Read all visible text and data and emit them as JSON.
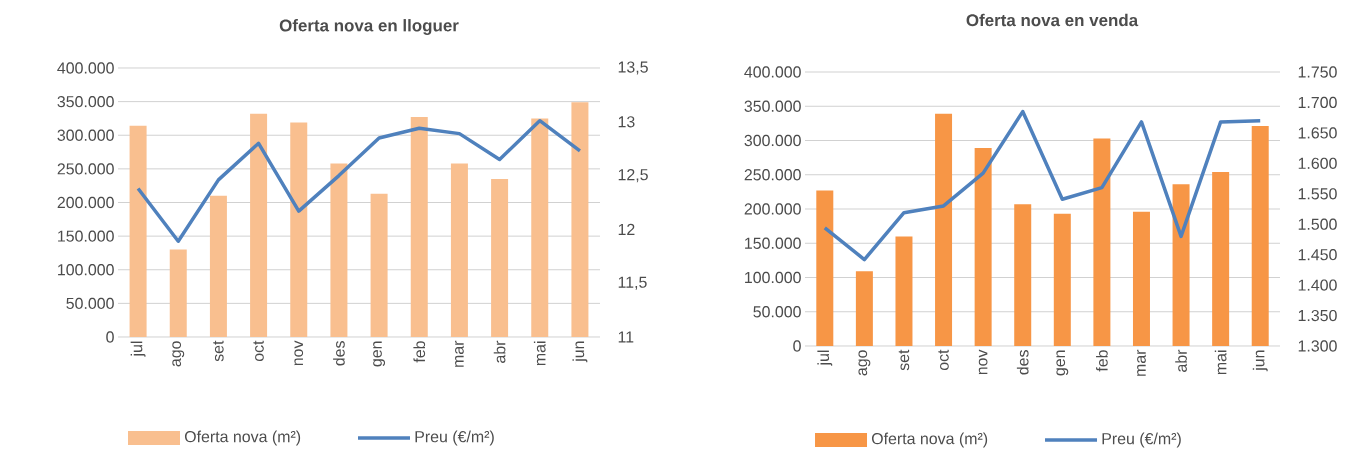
{
  "chart_data": [
    {
      "type": "bar",
      "title": "Oferta nova en lloguer",
      "categories": [
        "jul",
        "ago",
        "set",
        "oct",
        "nov",
        "des",
        "gen",
        "feb",
        "mar",
        "abr",
        "mai",
        "jun"
      ],
      "series": [
        {
          "name": "Oferta nova (m²)",
          "color": "#f9bf8f",
          "values": [
            314000,
            130000,
            210000,
            332000,
            319000,
            258000,
            213000,
            327000,
            258000,
            235000,
            325000,
            349000
          ]
        },
        {
          "name": "Preu (€/m²)",
          "type": "line",
          "axis": "y2",
          "color": "#4f81bd",
          "values": [
            12.38,
            11.89,
            12.46,
            12.8,
            12.17,
            12.5,
            12.85,
            12.94,
            12.89,
            12.65,
            13.01,
            12.73
          ]
        }
      ],
      "ylim": [
        0,
        400000
      ],
      "yticks": [
        0,
        {
          "value": 50000,
          "label": "50.000"
        },
        {
          "value": 100000,
          "label": "100.000"
        },
        {
          "value": 150000,
          "label": "150.000"
        },
        {
          "value": 200000,
          "label": "200.000"
        },
        {
          "value": 250000,
          "label": "250.000"
        },
        {
          "value": 300000,
          "label": "300.000"
        },
        {
          "value": 350000,
          "label": "350.000"
        },
        {
          "value": 400000,
          "label": "400.000"
        }
      ],
      "y2lim": [
        11,
        13.5
      ],
      "y2ticks": [
        11,
        {
          "value": 11.5,
          "label": "11,5"
        },
        12,
        {
          "value": 12.5,
          "label": "12,5"
        },
        13,
        {
          "value": 13.5,
          "label": "13,5"
        }
      ],
      "grid": "y",
      "legend": "bottom"
    },
    {
      "type": "bar",
      "title": "Oferta nova en venda",
      "categories": [
        "jul",
        "ago",
        "set",
        "oct",
        "nov",
        "des",
        "gen",
        "feb",
        "mar",
        "abr",
        "mai",
        "jun"
      ],
      "series": [
        {
          "name": "Oferta nova (m²)",
          "color": "#f79646",
          "values": [
            227000,
            109000,
            160000,
            339000,
            289000,
            207000,
            193000,
            303000,
            196000,
            236000,
            254000,
            321000
          ]
        },
        {
          "name": "Preu (€/m²)",
          "type": "line",
          "axis": "y2",
          "color": "#4f81bd",
          "values": [
            1494,
            1442,
            1519,
            1530,
            1584,
            1685,
            1541,
            1560,
            1668,
            1480,
            1668,
            1670
          ]
        }
      ],
      "ylim": [
        0,
        400000
      ],
      "yticks": [
        0,
        {
          "value": 50000,
          "label": "50.000"
        },
        {
          "value": 100000,
          "label": "100.000"
        },
        {
          "value": 150000,
          "label": "150.000"
        },
        {
          "value": 200000,
          "label": "200.000"
        },
        {
          "value": 250000,
          "label": "250.000"
        },
        {
          "value": 300000,
          "label": "300.000"
        },
        {
          "value": 350000,
          "label": "350.000"
        },
        {
          "value": 400000,
          "label": "400.000"
        }
      ],
      "y2lim": [
        1300,
        1750
      ],
      "y2ticks": [
        {
          "value": 1300,
          "label": "1.300"
        },
        {
          "value": 1350,
          "label": "1.350"
        },
        {
          "value": 1400,
          "label": "1.400"
        },
        {
          "value": 1450,
          "label": "1.450"
        },
        {
          "value": 1500,
          "label": "1.500"
        },
        {
          "value": 1550,
          "label": "1.550"
        },
        {
          "value": 1600,
          "label": "1.600"
        },
        {
          "value": 1650,
          "label": "1.650"
        },
        {
          "value": 1700,
          "label": "1.700"
        },
        {
          "value": 1750,
          "label": "1.750"
        }
      ],
      "grid": "y",
      "legend": "bottom"
    }
  ]
}
